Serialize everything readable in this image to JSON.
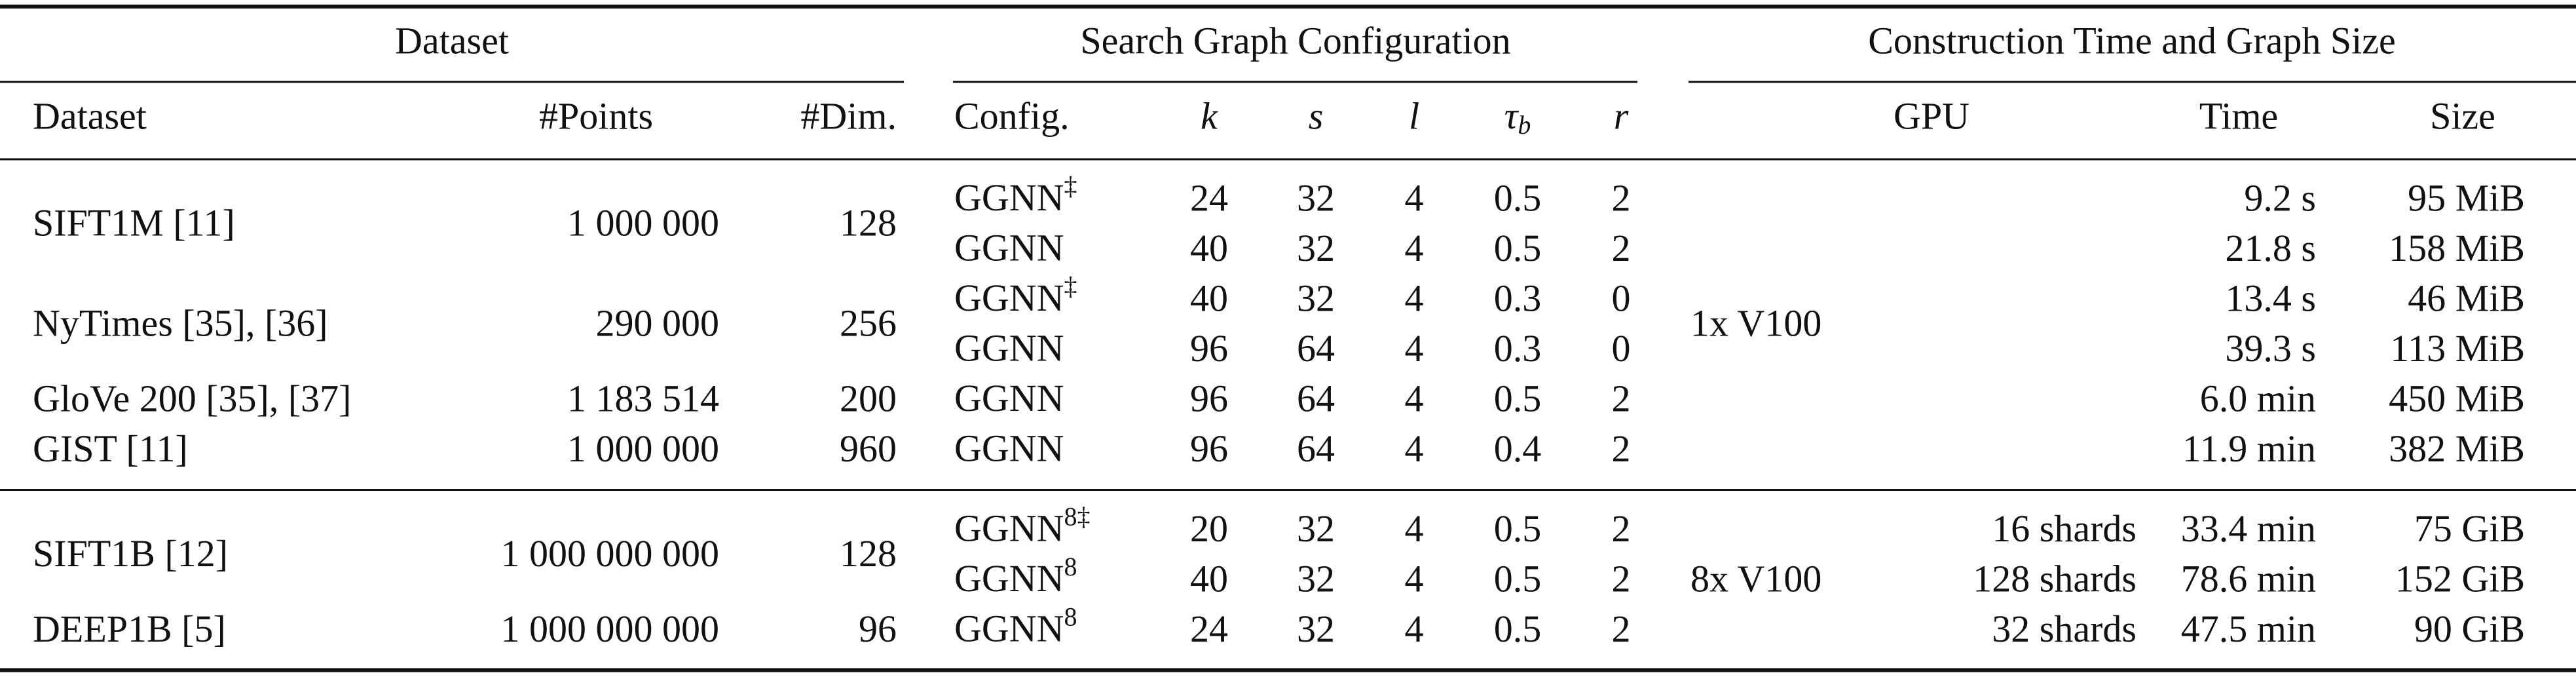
{
  "header_groups": [
    "Dataset",
    "Search Graph Configuration",
    "Construction Time and Graph Size"
  ],
  "columns": {
    "dataset": [
      "Dataset",
      "#Points",
      "#Dim."
    ],
    "config": [
      "Config.",
      "k",
      "s",
      "l",
      {
        "symbol": "τ",
        "sub": "b"
      },
      "r"
    ],
    "construction": [
      "GPU",
      "Time",
      "Size"
    ]
  },
  "sections": [
    {
      "gpu": "1x V100",
      "datasets": [
        {
          "name": "SIFT1M [11]",
          "points": "1 000 000",
          "dim": 128,
          "configs": [
            {
              "config": {
                "name": "GGNN",
                "sup": "‡"
              },
              "k": 24,
              "s": 32,
              "l": 4,
              "tau_b": 0.5,
              "r": 2,
              "time": "9.2 s",
              "size": "95 MiB"
            },
            {
              "config": {
                "name": "GGNN"
              },
              "k": 40,
              "s": 32,
              "l": 4,
              "tau_b": 0.5,
              "r": 2,
              "time": "21.8 s",
              "size": "158 MiB"
            }
          ]
        },
        {
          "name": "NyTimes [35], [36]",
          "points": "290 000",
          "dim": 256,
          "configs": [
            {
              "config": {
                "name": "GGNN",
                "sup": "‡"
              },
              "k": 40,
              "s": 32,
              "l": 4,
              "tau_b": 0.3,
              "r": 0,
              "time": "13.4 s",
              "size": "46 MiB"
            },
            {
              "config": {
                "name": "GGNN"
              },
              "k": 96,
              "s": 64,
              "l": 4,
              "tau_b": 0.3,
              "r": 0,
              "time": "39.3 s",
              "size": "113 MiB"
            }
          ]
        },
        {
          "name": "GloVe 200 [35], [37]",
          "points": "1 183 514",
          "dim": 200,
          "configs": [
            {
              "config": {
                "name": "GGNN"
              },
              "k": 96,
              "s": 64,
              "l": 4,
              "tau_b": 0.5,
              "r": 2,
              "time": "6.0 min",
              "size": "450 MiB"
            }
          ]
        },
        {
          "name": "GIST [11]",
          "points": "1 000 000",
          "dim": 960,
          "configs": [
            {
              "config": {
                "name": "GGNN"
              },
              "k": 96,
              "s": 64,
              "l": 4,
              "tau_b": 0.4,
              "r": 2,
              "time": "11.9 min",
              "size": "382 MiB"
            }
          ]
        }
      ]
    },
    {
      "gpu": "8x V100",
      "datasets": [
        {
          "name": "SIFT1B [12]",
          "points": "1 000 000 000",
          "dim": 128,
          "configs": [
            {
              "config": {
                "name": "GGNN",
                "sup": "8‡"
              },
              "k": 20,
              "s": 32,
              "l": 4,
              "tau_b": 0.5,
              "r": 2,
              "shards": "16 shards",
              "time": "33.4 min",
              "size": "75 GiB"
            },
            {
              "config": {
                "name": "GGNN",
                "sup": "8"
              },
              "k": 40,
              "s": 32,
              "l": 4,
              "tau_b": 0.5,
              "r": 2,
              "shards": "128 shards",
              "time": "78.6 min",
              "size": "152 GiB"
            }
          ]
        },
        {
          "name": "DEEP1B [5]",
          "points": "1 000 000 000",
          "dim": 96,
          "configs": [
            {
              "config": {
                "name": "GGNN",
                "sup": "8"
              },
              "k": 24,
              "s": 32,
              "l": 4,
              "tau_b": 0.5,
              "r": 2,
              "shards": "32 shards",
              "time": "47.5 min",
              "size": "90 GiB"
            }
          ]
        }
      ]
    }
  ]
}
